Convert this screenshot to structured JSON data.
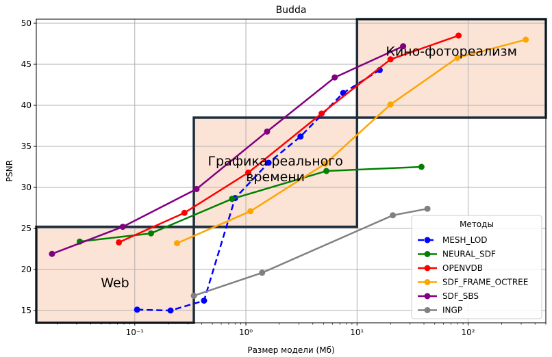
{
  "chart_data": {
    "type": "line",
    "title": "Budda",
    "xlabel": "Размер модели (Мб)",
    "ylabel": "PSNR",
    "xscale": "log",
    "xlim": [
      0.013,
      500
    ],
    "ylim": [
      13.5,
      50.5
    ],
    "x_ticks": [
      0.1,
      1,
      10,
      100
    ],
    "x_tick_labels": [
      "10⁻¹",
      "10⁰",
      "10¹",
      "10²"
    ],
    "y_ticks": [
      15,
      20,
      25,
      30,
      35,
      40,
      45,
      50
    ],
    "grid": true,
    "legend": {
      "title": "Методы",
      "placement": "lower-right"
    },
    "series": [
      {
        "name": "MESH_LOD",
        "color": "#0000ff",
        "linestyle": "dashed",
        "x": [
          0.105,
          0.21,
          0.42,
          0.8,
          1.6,
          3.1,
          7.5,
          16
        ],
        "y": [
          15.1,
          15.0,
          16.2,
          28.7,
          33.0,
          36.2,
          41.5,
          44.3
        ]
      },
      {
        "name": "NEURAL_SDF",
        "color": "#008000",
        "linestyle": "solid",
        "x": [
          0.032,
          0.14,
          0.75,
          5.3,
          38
        ],
        "y": [
          23.4,
          24.4,
          28.6,
          32.0,
          32.5
        ]
      },
      {
        "name": "OPENVDB",
        "color": "#ff0000",
        "linestyle": "solid",
        "x": [
          0.072,
          0.28,
          1.05,
          4.8,
          20,
          82
        ],
        "y": [
          23.3,
          26.9,
          31.8,
          39.0,
          45.6,
          48.5
        ]
      },
      {
        "name": "SDF_FRAME_OCTREE",
        "color": "#ffa500",
        "linestyle": "solid",
        "x": [
          0.24,
          1.1,
          5.2,
          20,
          80,
          330
        ],
        "y": [
          23.2,
          27.1,
          32.9,
          40.1,
          45.8,
          48.0
        ]
      },
      {
        "name": "SDF_SBS",
        "color": "#800080",
        "linestyle": "solid",
        "x": [
          0.018,
          0.078,
          0.36,
          1.55,
          6.3,
          26
        ],
        "y": [
          21.9,
          25.2,
          29.8,
          36.8,
          43.4,
          47.2
        ]
      },
      {
        "name": "INGP",
        "color": "#808080",
        "linestyle": "solid",
        "x": [
          0.34,
          1.4,
          21,
          43
        ],
        "y": [
          16.8,
          19.6,
          26.6,
          27.4
        ]
      }
    ],
    "regions": [
      {
        "label": "Web",
        "x": [
          0.013,
          0.34
        ],
        "y": [
          13.5,
          25.2
        ]
      },
      {
        "label": "Графика реального\nвремени",
        "x": [
          0.34,
          10
        ],
        "y": [
          25.2,
          38.5
        ]
      },
      {
        "label": "Кино-фотореализм",
        "x": [
          10,
          500
        ],
        "y": [
          38.5,
          50.5
        ]
      }
    ]
  }
}
